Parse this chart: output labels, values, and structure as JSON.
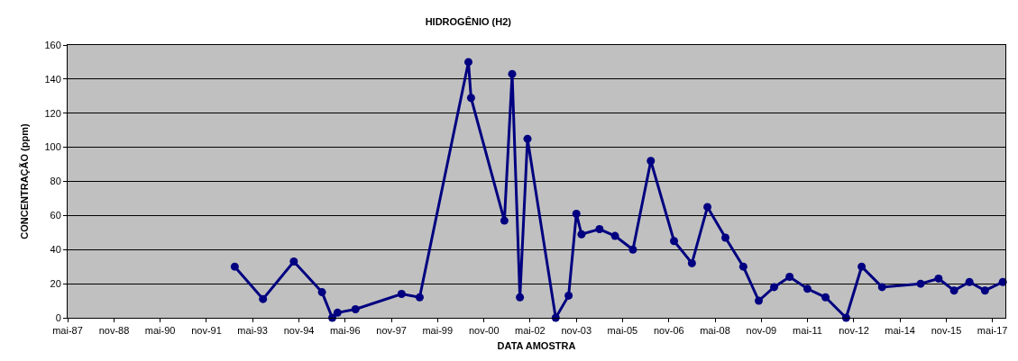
{
  "chart_data": {
    "type": "line",
    "title": "HIDROGÊNIO (H2)",
    "xlabel": "DATA AMOSTRA",
    "ylabel": "CONCENTRAÇÃO (ppm)",
    "x": [
      "1992-10",
      "1993-09",
      "1994-09",
      "1995-08",
      "1995-12",
      "1996-02",
      "1996-09",
      "1998-03",
      "1998-10",
      "2000-05",
      "2000-06",
      "2001-07",
      "2001-10",
      "2002-01",
      "2002-04",
      "2003-03",
      "2003-08",
      "2003-11",
      "2004-01",
      "2004-08",
      "2005-02",
      "2005-09",
      "2006-04",
      "2007-01",
      "2007-08",
      "2008-02",
      "2008-09",
      "2009-04",
      "2009-10",
      "2010-04",
      "2010-10",
      "2011-05",
      "2011-12",
      "2012-08",
      "2013-02",
      "2013-10",
      "2015-01",
      "2015-08",
      "2016-02",
      "2016-08",
      "2017-02",
      "2017-09"
    ],
    "series": [
      {
        "color": "#000080",
        "values": [
          30,
          11,
          33,
          15,
          0,
          3,
          5,
          14,
          12,
          150,
          129,
          57,
          143,
          12,
          105,
          0,
          13,
          61,
          49,
          52,
          48,
          40,
          92,
          45,
          32,
          65,
          47,
          30,
          10,
          18,
          24,
          17,
          12,
          0,
          30,
          18,
          20,
          23,
          16,
          21,
          16,
          21
        ]
      }
    ],
    "xlim": [
      "1987-05-01",
      "2017-10-01"
    ],
    "xticks": [
      {
        "value": "1987-05-01",
        "label": "mai-87"
      },
      {
        "value": "1988-11-01",
        "label": "nov-88"
      },
      {
        "value": "1990-05-01",
        "label": "mai-90"
      },
      {
        "value": "1991-11-01",
        "label": "nov-91"
      },
      {
        "value": "1993-05-01",
        "label": "mai-93"
      },
      {
        "value": "1994-11-01",
        "label": "nov-94"
      },
      {
        "value": "1996-05-01",
        "label": "mai-96"
      },
      {
        "value": "1997-11-01",
        "label": "nov-97"
      },
      {
        "value": "1999-05-01",
        "label": "mai-99"
      },
      {
        "value": "2000-11-01",
        "label": "nov-00"
      },
      {
        "value": "2002-05-01",
        "label": "mai-02"
      },
      {
        "value": "2003-11-01",
        "label": "nov-03"
      },
      {
        "value": "2005-05-01",
        "label": "mai-05"
      },
      {
        "value": "2006-11-01",
        "label": "nov-06"
      },
      {
        "value": "2008-05-01",
        "label": "mai-08"
      },
      {
        "value": "2009-11-01",
        "label": "nov-09"
      },
      {
        "value": "2011-05-01",
        "label": "mai-11"
      },
      {
        "value": "2012-11-01",
        "label": "nov-12"
      },
      {
        "value": "2014-05-01",
        "label": "mai-14"
      },
      {
        "value": "2015-11-01",
        "label": "nov-15"
      },
      {
        "value": "2017-05-01",
        "label": "mai-17"
      }
    ],
    "ylim": [
      0,
      160
    ],
    "yticks": [
      0,
      20,
      40,
      60,
      80,
      100,
      120,
      140,
      160
    ],
    "grid": "y",
    "marker": "circle",
    "line_style": "solid"
  }
}
